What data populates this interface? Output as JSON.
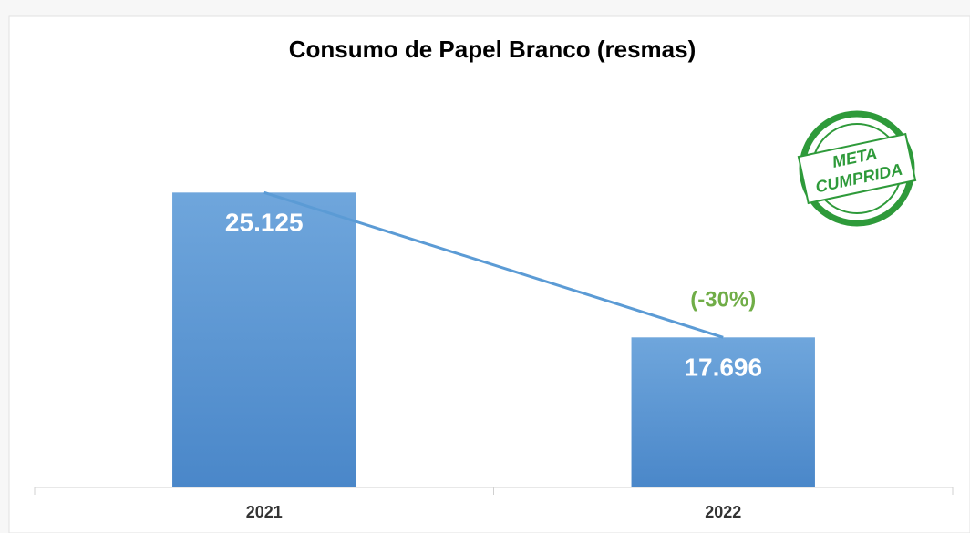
{
  "chart_data": {
    "type": "bar",
    "title": "Consumo de Papel Branco (resmas)",
    "categories": [
      "2021",
      "2022"
    ],
    "values": [
      25125,
      17696
    ],
    "value_labels": [
      "25.125",
      "17.696"
    ],
    "color": "#5b9bd5",
    "trend_line": true,
    "trend_color": "#5b9bd5",
    "ylim": [
      10000,
      30000
    ],
    "annotation": {
      "text": "(-30%)",
      "color": "#70ad47"
    },
    "stamp": {
      "lines": [
        "META",
        "CUMPRIDA"
      ],
      "color": "#2e9a3a"
    }
  }
}
